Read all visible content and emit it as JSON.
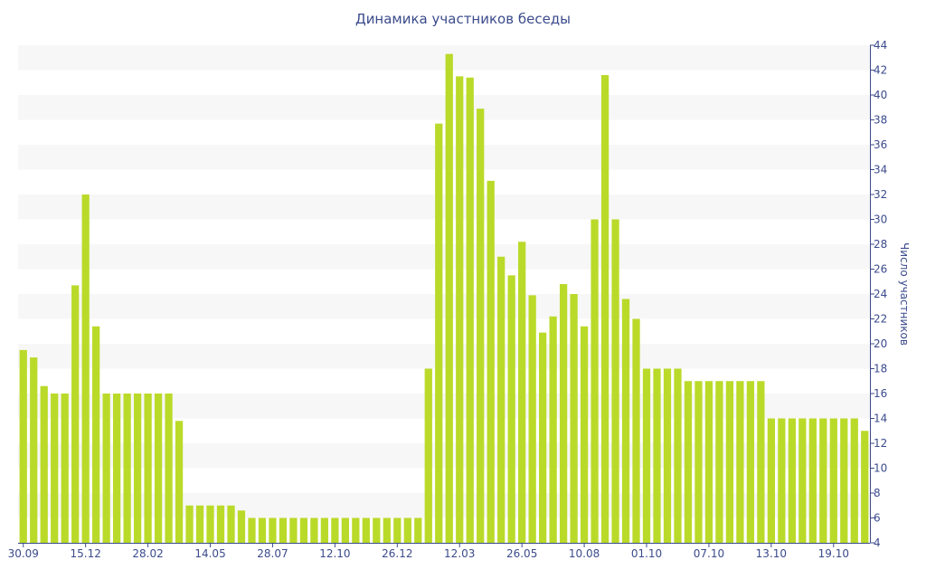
{
  "chart_data": {
    "type": "bar",
    "title": "Динамика участников беседы",
    "xlabel": "",
    "ylabel": "Число участников",
    "ylim": [
      4,
      44
    ],
    "y_ticks": [
      4,
      6,
      8,
      10,
      12,
      14,
      16,
      18,
      20,
      22,
      24,
      26,
      28,
      30,
      32,
      34,
      36,
      38,
      40,
      42,
      44
    ],
    "y_axis_side": "right",
    "grid": "alternating horizontal bands",
    "legend": "none",
    "x_tick_labels": [
      {
        "bar_index": 0,
        "label": "30.09"
      },
      {
        "bar_index": 6,
        "label": "15.12"
      },
      {
        "bar_index": 12,
        "label": "28.02"
      },
      {
        "bar_index": 18,
        "label": "14.05"
      },
      {
        "bar_index": 24,
        "label": "28.07"
      },
      {
        "bar_index": 30,
        "label": "12.10"
      },
      {
        "bar_index": 36,
        "label": "26.12"
      },
      {
        "bar_index": 42,
        "label": "12.03"
      },
      {
        "bar_index": 48,
        "label": "26.05"
      },
      {
        "bar_index": 54,
        "label": "10.08"
      },
      {
        "bar_index": 60,
        "label": "01.10"
      },
      {
        "bar_index": 66,
        "label": "07.10"
      },
      {
        "bar_index": 72,
        "label": "13.10"
      },
      {
        "bar_index": 78,
        "label": "19.10"
      }
    ],
    "values": [
      19.5,
      18.9,
      16.6,
      16,
      16,
      24.7,
      32,
      21.4,
      16,
      16,
      16,
      16,
      16,
      16,
      16,
      13.8,
      7,
      7,
      7,
      7,
      7,
      6.6,
      6,
      6,
      6,
      6,
      6,
      6,
      6,
      6,
      6,
      6,
      6,
      6,
      6,
      6,
      6,
      6,
      6,
      18,
      37.7,
      43.3,
      41.5,
      41.4,
      38.9,
      33.1,
      27,
      25.5,
      28.2,
      23.9,
      20.9,
      22.2,
      24.8,
      24,
      21.4,
      30,
      41.6,
      30,
      23.6,
      22,
      18,
      18,
      18,
      18,
      17,
      17,
      17,
      17,
      17,
      17,
      17,
      17,
      14,
      14,
      14,
      14,
      14,
      14,
      14,
      14,
      14,
      13
    ],
    "colors": {
      "bar": "#bada2a",
      "band": "#f7f7f7",
      "text": "#3b4b8c",
      "axis": "#3b4b8c"
    }
  }
}
